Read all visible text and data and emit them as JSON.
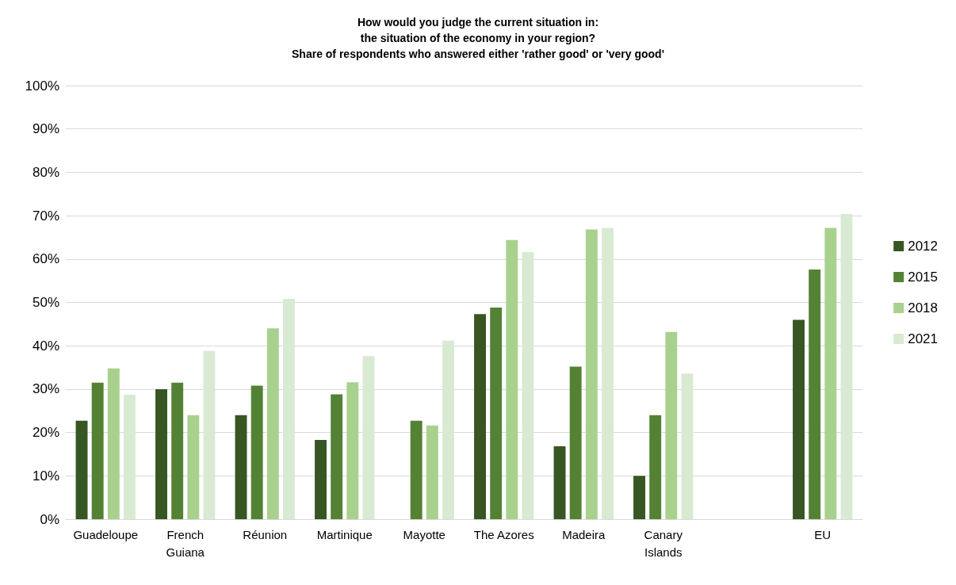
{
  "chart_data": {
    "type": "bar",
    "title": "How would you judge the current situation in:\nthe situation of the economy in your region?\nShare of respondents who answered either 'rather good' or 'very good'",
    "categories": [
      "Guadeloupe",
      "French\nGuiana",
      "Réunion",
      "Martinique",
      "Mayotte",
      "The Azores",
      "Madeira",
      "Canary\nIslands",
      null,
      "EU"
    ],
    "series": [
      {
        "name": "2012",
        "color": "#375623",
        "values": [
          22.7,
          30,
          24,
          18.3,
          null,
          47.3,
          16.8,
          10,
          null,
          46
        ]
      },
      {
        "name": "2015",
        "color": "#548235",
        "values": [
          31.5,
          31.5,
          30.8,
          28.8,
          22.7,
          48.8,
          35.2,
          24,
          null,
          57.6
        ]
      },
      {
        "name": "2018",
        "color": "#a9d18e",
        "values": [
          34.8,
          24,
          44,
          31.6,
          21.6,
          64.4,
          66.8,
          43.2,
          null,
          67.2
        ]
      },
      {
        "name": "2021",
        "color": "#d9ead3",
        "values": [
          28.7,
          38.8,
          50.8,
          37.6,
          41.2,
          61.6,
          67.2,
          33.6,
          null,
          70.4
        ]
      }
    ],
    "ylim": [
      0,
      100
    ],
    "yticks": [
      {
        "value": 0,
        "label": "0%"
      },
      {
        "value": 10,
        "label": "10%"
      },
      {
        "value": 20,
        "label": "20%"
      },
      {
        "value": 30,
        "label": "30%"
      },
      {
        "value": 40,
        "label": "40%"
      },
      {
        "value": 50,
        "label": "50%"
      },
      {
        "value": 60,
        "label": "60%"
      },
      {
        "value": 70,
        "label": "70%"
      },
      {
        "value": 80,
        "label": "80%"
      },
      {
        "value": 90,
        "label": "90%"
      },
      {
        "value": 100,
        "label": "100%"
      }
    ],
    "grid": "y",
    "legend": "right"
  }
}
